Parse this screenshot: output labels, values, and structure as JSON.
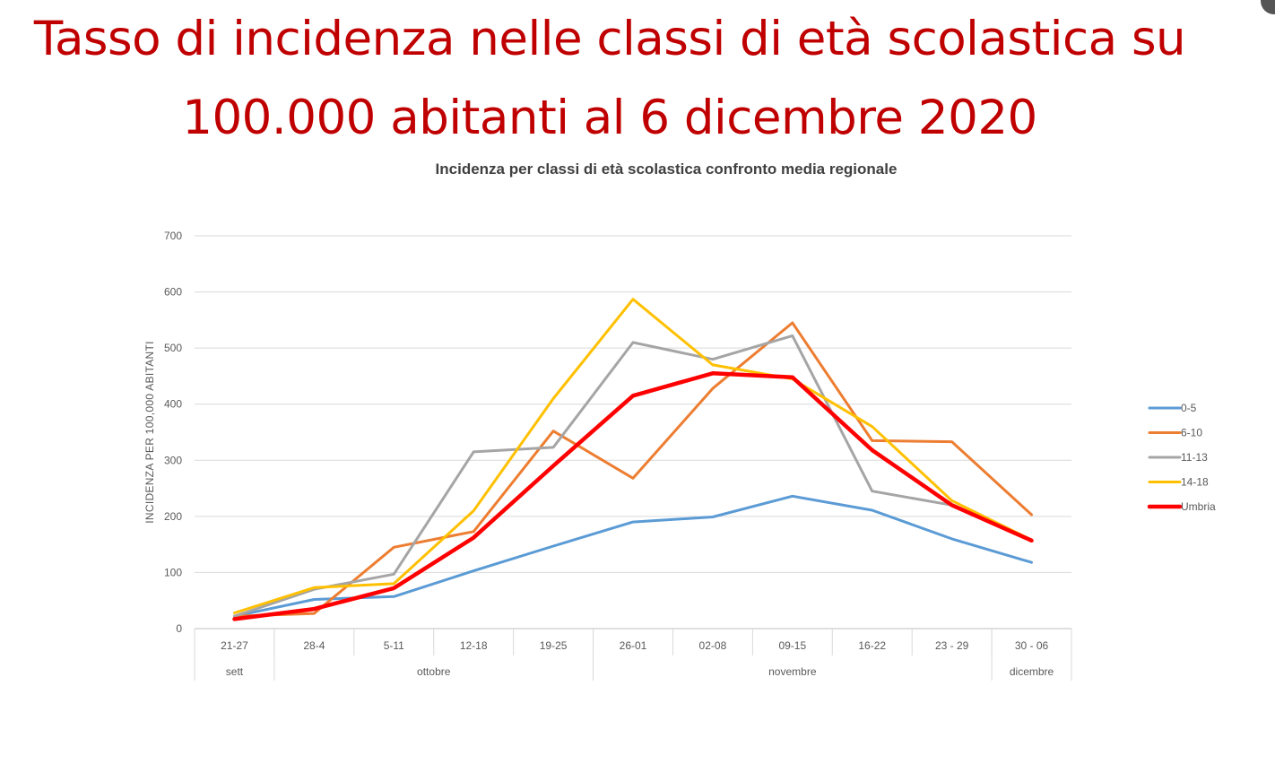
{
  "slide": {
    "title_line1": "Tasso di incidenza nelle classi di età scolastica su",
    "title_line2": "100.000 abitanti al 6 dicembre 2020"
  },
  "chart_data": {
    "type": "line",
    "title": "Incidenza per classi di età scolastica confronto media regionale",
    "ylabel": "INCIDENZA PER 100,000 ABITANTI",
    "xlabel": "",
    "ylim": [
      0,
      700
    ],
    "yticks": [
      0,
      100,
      200,
      300,
      400,
      500,
      600,
      700
    ],
    "grid": true,
    "legend_position": "right",
    "categories": [
      "21-27",
      "28-4",
      "5-11",
      "12-18",
      "19-25",
      "26-01",
      "02-08",
      "09-15",
      "16-22",
      "23 - 29",
      "30 - 06"
    ],
    "months": [
      {
        "label": "sett",
        "span": 1
      },
      {
        "label": "ottobre",
        "span": 4
      },
      {
        "label": "novembre",
        "span": 5
      },
      {
        "label": "dicembre",
        "span": 1
      }
    ],
    "series": [
      {
        "name": "0-5",
        "color": "#5b9bd5",
        "values": [
          22,
          52,
          57,
          103,
          147,
          190,
          199,
          236,
          211,
          160,
          118
        ]
      },
      {
        "name": "6-10",
        "color": "#ed7d31",
        "values": [
          22,
          27,
          145,
          173,
          352,
          268,
          428,
          545,
          335,
          333,
          203
        ]
      },
      {
        "name": "11-13",
        "color": "#a5a5a5",
        "values": [
          22,
          70,
          97,
          315,
          323,
          510,
          480,
          522,
          245,
          220,
          158
        ]
      },
      {
        "name": "14-18",
        "color": "#ffc000",
        "values": [
          28,
          73,
          80,
          210,
          410,
          587,
          470,
          445,
          360,
          228,
          158
        ]
      },
      {
        "name": "Umbria",
        "color": "#ff0000",
        "values": [
          17,
          35,
          72,
          162,
          290,
          415,
          455,
          448,
          318,
          220,
          157
        ]
      }
    ]
  }
}
